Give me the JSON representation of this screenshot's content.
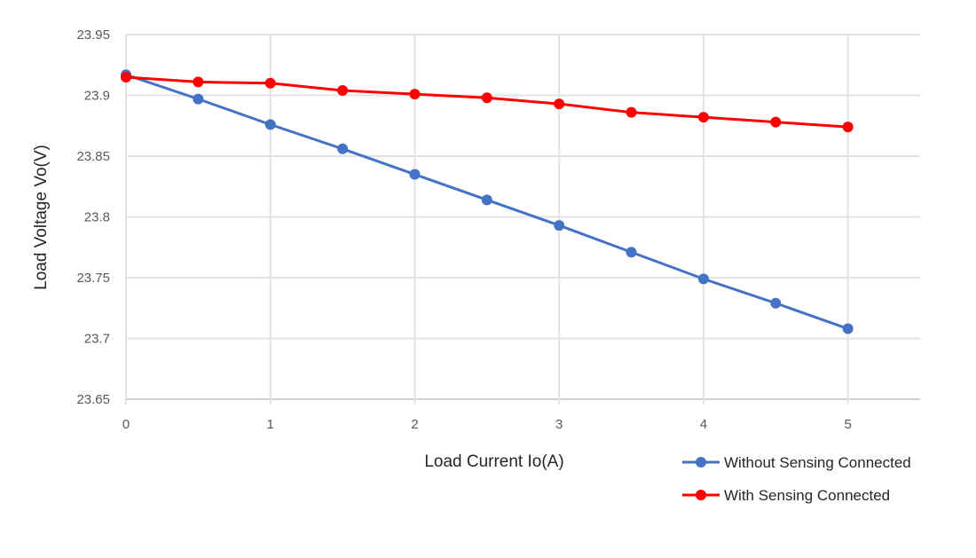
{
  "chart_data": {
    "type": "line",
    "title": "",
    "xlabel": "Load Current Io(A)",
    "ylabel": "Load Voltage Vo(V)",
    "xlim": [
      0,
      5.5
    ],
    "ylim": [
      23.65,
      23.95
    ],
    "x_ticks": [
      "0",
      "1",
      "2",
      "3",
      "4",
      "5"
    ],
    "y_ticks": [
      "23.65",
      "23.7",
      "23.75",
      "23.8",
      "23.85",
      "23.9",
      "23.95"
    ],
    "grid": true,
    "legend_position": "bottom-right",
    "x": [
      0,
      0.5,
      1,
      1.5,
      2,
      2.5,
      3,
      3.5,
      4,
      4.5,
      5
    ],
    "series": [
      {
        "name": "Without Sensing Connected",
        "color": "#4472C4",
        "values": [
          23.917,
          23.897,
          23.876,
          23.856,
          23.835,
          23.814,
          23.793,
          23.771,
          23.749,
          23.729,
          23.708
        ]
      },
      {
        "name": "With Sensing Connected",
        "color": "#FF0000",
        "values": [
          23.915,
          23.911,
          23.91,
          23.904,
          23.901,
          23.898,
          23.893,
          23.886,
          23.882,
          23.878,
          23.874
        ]
      }
    ]
  }
}
